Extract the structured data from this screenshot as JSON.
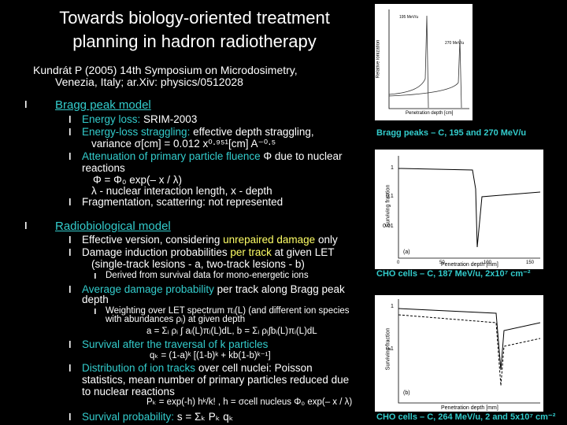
{
  "title": [
    "Towards biology-oriented treatment",
    "planning in hadron radiotherapy"
  ],
  "reference": [
    "Kundrát P (2005) 14th Symposium on Microdosimetry,",
    "Venezia, Italy; ar.Xiv: physics/0512028"
  ],
  "sections": [
    {
      "heading": "Bragg peak model",
      "items": [
        {
          "lines": [
            [
              {
                "text": "Energy loss:",
                "color": "#33cccc"
              },
              " SRIM-2003"
            ]
          ]
        },
        {
          "lines": [
            [
              {
                "text": "Energy-loss straggling:",
                "color": "#33cccc"
              },
              " effective depth straggling,"
            ],
            "variance σ[cm] = 0.012 x⁰·⁹⁵¹[cm] A⁻⁰·⁵"
          ]
        },
        {
          "lines": [
            [
              {
                "text": "Attenuation of primary particle fluence",
                "color": "#33cccc"
              },
              " Φ due to nuclear"
            ],
            "reactions",
            "Φ = Φ₀ exp(– x / λ)",
            "λ - nuclear interaction length, x - depth"
          ]
        },
        {
          "lines": [
            "Fragmentation, scattering: not represented"
          ]
        }
      ]
    },
    {
      "heading": "Radiobiological model",
      "items": [
        {
          "lines": [
            [
              "Effective version, considering ",
              {
                "text": "unrepaired damage",
                "color": "#ffff66"
              },
              " only"
            ]
          ]
        },
        {
          "lines": [
            [
              "Damage induction probabilities ",
              {
                "text": "per track",
                "color": "#ffff66"
              },
              " at given LET"
            ],
            "(single-track lesions - a, two-track lesions - b)"
          ],
          "subitems": [
            {
              "lines": [
                "Derived from survival data for mono-energetic ions"
              ]
            }
          ]
        },
        {
          "lines": [
            [
              {
                "text": "Average damage probability",
                "color": "#33cccc"
              },
              " per track along Bragg peak"
            ],
            "depth"
          ],
          "subitems": [
            {
              "lines": [
                "Weighting over LET spectrum πᵢ(L) (and different ion species",
                "with abundances ρᵢ) at given depth",
                "a = Σᵢ ρᵢ ∫ aᵢ(L)πᵢ(L)dL,   b = Σᵢ ρᵢ∫bᵢ(L)πᵢ(L)dL"
              ]
            }
          ]
        },
        {
          "lines": [
            [
              {
                "text": "Survival after the traversal of k particles",
                "color": "#33cccc"
              }
            ],
            "qₖ = (1-a)ᵏ [(1-b)ᵏ + kb(1-b)ᵏ⁻¹]"
          ]
        },
        {
          "lines": [
            [
              {
                "text": "Distribution of ion tracks",
                "color": "#33cccc"
              },
              " over cell nuclei: Poisson"
            ],
            "statistics, mean number of primary particles reduced due",
            "to nuclear reactions",
            "Pₖ = exp(-h) hᵏ/k! ,      h = σcell nucleus Φ₀ exp(– x / λ)"
          ]
        },
        {
          "lines": [
            [
              {
                "text": "Survival probability:",
                "color": "#33cccc"
              },
              " s = Σₖ Pₖ qₖ"
            ]
          ]
        }
      ]
    }
  ],
  "figures": [
    {
      "caption": "Bragg peaks – C, 195 and 270 MeV/u",
      "x_label": "Penetration depth [cm]",
      "y_label": "Relative ionization",
      "legend": [
        "195 MeV/u",
        "270 MeV/u"
      ]
    },
    {
      "caption": "CHO cells – C, 187 MeV/u, 2x10⁷ cm⁻²",
      "x_label": "Penetration depth [mm]",
      "y_label": "Surviving fraction",
      "panel": "(a)",
      "yticks": [
        "1",
        "0.1",
        "0.01"
      ],
      "xticks": [
        "0",
        "50",
        "100",
        "150"
      ]
    },
    {
      "caption": "CHO cells – C, 264 MeV/u, 2 and 5x10⁷ cm⁻²",
      "x_label": "Penetration depth [mm]",
      "y_label": "Surviving fraction",
      "panel": "(b)",
      "yticks": [
        "1",
        "0.1"
      ]
    }
  ]
}
